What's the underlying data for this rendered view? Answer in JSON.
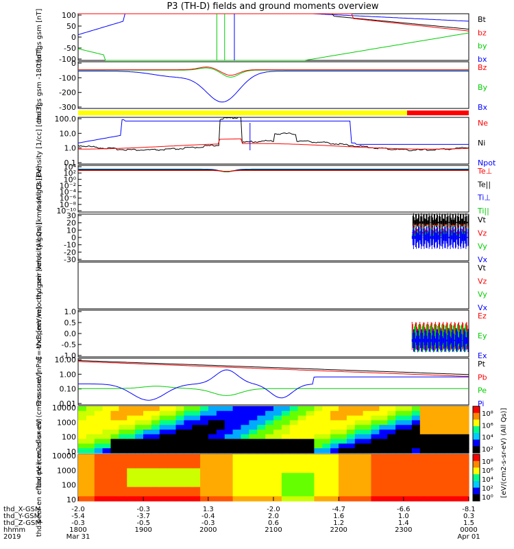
{
  "title": "P3 (TH-D) fields and ground moments overview",
  "colors": {
    "black": "#000000",
    "red": "#ff0000",
    "green": "#00cc00",
    "blue": "#0000ff",
    "yellow": "#ffff00"
  },
  "chart_data": [
    {
      "type": "line",
      "ylabel": "thd fgs gsm [nT]",
      "yticks": [
        "100",
        "50",
        "0",
        "-50",
        "-100"
      ],
      "legend": [
        {
          "label": "Bt",
          "color": "#000000"
        },
        {
          "label": "bz",
          "color": "#ff0000"
        },
        {
          "label": "by",
          "color": "#00cc00"
        },
        {
          "label": "bx",
          "color": "#0000ff"
        }
      ]
    },
    {
      "type": "line",
      "ylabel": "thd fgs gsm -180 [nT]",
      "yticks": [
        "0",
        "-100",
        "-200",
        "-300"
      ],
      "legend": [
        {
          "label": "Bz",
          "color": "#ff0000"
        },
        {
          "label": "By",
          "color": "#00cc00"
        },
        {
          "label": "Bx",
          "color": "#0000ff"
        }
      ]
    },
    {
      "type": "line",
      "ylabel": "Density [1/cc] [cm-3]",
      "yticks": [
        "100.0",
        "10.0",
        "1.0",
        "0.1"
      ],
      "legend": [
        {
          "label": "Ne",
          "color": "#ff0000"
        },
        {
          "label": "Ni",
          "color": "#000000"
        },
        {
          "label": "Npot",
          "color": "#0000ff"
        }
      ]
    },
    {
      "type": "line",
      "ylabel": "momgt3 [eV]",
      "yticks": [
        "10⁴",
        "10²",
        "10⁰",
        "10⁻²",
        "10⁻⁴",
        "10⁻⁶",
        "10⁻⁸",
        "10⁻¹⁰"
      ],
      "legend": [
        {
          "label": "Te⊥",
          "color": "#ff0000"
        },
        {
          "label": "Te||",
          "color": "#000000"
        },
        {
          "label": "Ti⊥",
          "color": "#0000ff"
        },
        {
          "label": "Ti||",
          "color": "#00cc00"
        }
      ]
    },
    {
      "type": "line",
      "ylabel": "thd peir velocity gsm [km/s (All Qs)]",
      "yticks": [
        "30",
        "20",
        "10",
        "0",
        "-10",
        "-20",
        "-30"
      ],
      "legend": [
        {
          "label": "Vt",
          "color": "#000000"
        },
        {
          "label": "Vz",
          "color": "#ff0000"
        },
        {
          "label": "Vy",
          "color": "#00cc00"
        },
        {
          "label": "Vx",
          "color": "#0000ff"
        }
      ]
    },
    {
      "type": "line",
      "ylabel": "thd peer velocity gsm [km/s (All Qs)]",
      "yticks": [],
      "legend": [
        {
          "label": "Vt",
          "color": "#000000"
        },
        {
          "label": "Vz",
          "color": "#ff0000"
        },
        {
          "label": "Vy",
          "color": "#00cc00"
        },
        {
          "label": "Vx",
          "color": "#0000ff"
        }
      ]
    },
    {
      "type": "line",
      "ylabel": "E=-VxB [mV/m]",
      "yticks": [
        "1.0",
        "0.5",
        "0.0",
        "-0.5",
        "-1.0"
      ],
      "legend": [
        {
          "label": "Ez",
          "color": "#ff0000"
        },
        {
          "label": "Ey",
          "color": "#00cc00"
        },
        {
          "label": "Ex",
          "color": "#0000ff"
        }
      ]
    },
    {
      "type": "line",
      "ylabel": "Pressure [nPa]",
      "yticks": [
        "10.00",
        "1.00",
        "0.10",
        "0.01"
      ],
      "legend": [
        {
          "label": "Pt",
          "color": "#000000"
        },
        {
          "label": "Pb",
          "color": "#ff0000"
        },
        {
          "label": "Pe",
          "color": "#00cc00"
        },
        {
          "label": "Pi",
          "color": "#0000ff"
        }
      ]
    },
    {
      "type": "heatmap",
      "ylabel": "thd peir en eflux eV (cm2-s-sr-eV)",
      "yticks": [
        "10000",
        "1000",
        "100",
        "10"
      ],
      "colorbar_ticks": [
        "10⁸",
        "10⁶",
        "10⁴",
        "10²"
      ]
    },
    {
      "type": "heatmap",
      "ylabel": "thd peer en eflux eV (cm2-s-sr-eV)",
      "yticks": [
        "10000",
        "1000",
        "100",
        "10"
      ],
      "colorbar_ticks": [
        "10⁸",
        "10⁶",
        "10⁴",
        "10²",
        "10⁰"
      ],
      "colorbar_label": "[eV/(cm2-s-sr-eV) (All Qs)]"
    }
  ],
  "xaxis": {
    "rows": [
      {
        "label": "thd_X-GSM",
        "values": [
          "-2.0",
          "-0.3",
          "1.3",
          "-2.0",
          "-4.7",
          "-6.6",
          "-8.1"
        ]
      },
      {
        "label": "thd_Y-GSM",
        "values": [
          "-5.4",
          "-3.7",
          "-0.4",
          "2.0",
          "1.6",
          "1.0",
          "0.3"
        ]
      },
      {
        "label": "thd_Z-GSM",
        "values": [
          "-0.3",
          "-0.5",
          "-0.3",
          "0.6",
          "1.2",
          "1.4",
          "1.5"
        ]
      },
      {
        "label": "hhmm",
        "values": [
          "1800",
          "1900",
          "2000",
          "2100",
          "2200",
          "2300",
          "0000"
        ]
      },
      {
        "label": "2019",
        "values": [
          "Mar 31",
          "",
          "",
          "",
          "",
          "",
          "Apr 01"
        ]
      }
    ]
  }
}
